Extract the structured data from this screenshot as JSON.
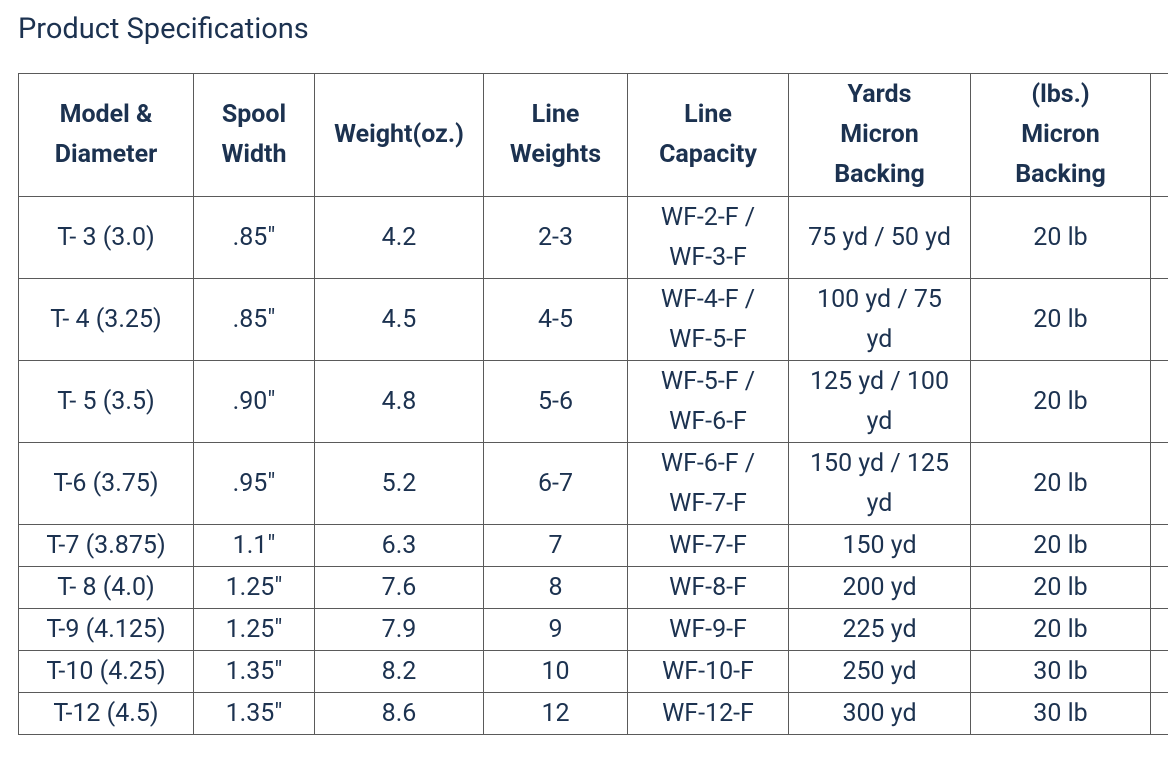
{
  "header": {
    "title": "Product Specifications"
  },
  "table": {
    "columns": [
      [
        "Model &",
        "Diameter"
      ],
      [
        "Spool",
        "Width"
      ],
      [
        "Weight(oz.)"
      ],
      [
        "Line",
        "Weights"
      ],
      [
        "Line",
        "Capacity"
      ],
      [
        "Yards",
        "Micron",
        "Backing"
      ],
      [
        "(lbs.)",
        "Micron",
        "Backing"
      ]
    ],
    "rows": [
      [
        "T- 3 (3.0)",
        ".85\"",
        "4.2",
        "2-3",
        [
          "WF-2-F /",
          "WF-3-F"
        ],
        [
          "75 yd / 50 yd"
        ],
        "20 lb"
      ],
      [
        "T- 4 (3.25)",
        ".85\"",
        "4.5",
        "4-5",
        [
          "WF-4-F /",
          "WF-5-F"
        ],
        [
          "100 yd / 75",
          "yd"
        ],
        "20 lb"
      ],
      [
        "T- 5 (3.5)",
        ".90\"",
        "4.8",
        "5-6",
        [
          "WF-5-F /",
          "WF-6-F"
        ],
        [
          "125 yd / 100",
          "yd"
        ],
        "20 lb"
      ],
      [
        "T-6 (3.75)",
        ".95\"",
        "5.2",
        "6-7",
        [
          "WF-6-F /",
          "WF-7-F"
        ],
        [
          "150 yd / 125",
          "yd"
        ],
        "20 lb"
      ],
      [
        "T-7 (3.875)",
        "1.1\"",
        "6.3",
        "7",
        "WF-7-F",
        "150 yd",
        "20 lb"
      ],
      [
        "T- 8 (4.0)",
        "1.25\"",
        "7.6",
        "8",
        "WF-8-F",
        "200 yd",
        "20 lb"
      ],
      [
        "T-9 (4.125)",
        "1.25\"",
        "7.9",
        "9",
        "WF-9-F",
        "225 yd",
        "20 lb"
      ],
      [
        "T-10 (4.25)",
        "1.35\"",
        "8.2",
        "10",
        "WF-10-F",
        "250 yd",
        "30 lb"
      ],
      [
        "T-12 (4.5)",
        "1.35\"",
        "8.6",
        "12",
        "WF-12-F",
        "300 yd",
        "30 lb"
      ]
    ]
  }
}
